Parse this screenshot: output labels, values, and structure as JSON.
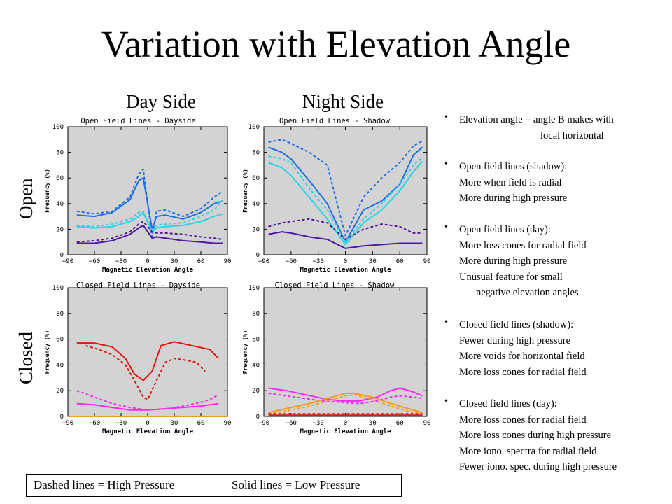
{
  "title": "Variation with Elevation Angle",
  "column_headers": [
    "Day Side",
    "Night Side"
  ],
  "row_headers": [
    "Open",
    "Closed"
  ],
  "bullets": [
    {
      "lines": [
        "Elevation angle = angle B makes with",
        "local horizontal"
      ]
    },
    {
      "lines": [
        "Open field lines (shadow):",
        "More when field is radial",
        "More during high pressure"
      ]
    },
    {
      "lines": [
        "Open field lines (day):",
        "More loss cones for radial field",
        "More during high pressure",
        "Unusual feature for small",
        "negative elevation angles"
      ]
    },
    {
      "lines": [
        "Closed field lines (shadow):",
        "Fewer during high pressure",
        "More voids for horizontal field",
        "More loss cones for radial field"
      ]
    },
    {
      "lines": [
        "Closed field lines (day):",
        "More loss cones for radial field",
        "More loss cones during high pressure",
        "More iono. spectra for radial field",
        "Fewer iono. spec. during high pressure"
      ]
    }
  ],
  "legend": {
    "dashed": "Dashed lines = High Pressure",
    "solid": "Solid lines = Low Pressure"
  },
  "colors": {
    "background": "#d3d3d3",
    "blue": "#1f6fe8",
    "cyan": "#2ad2e8",
    "purple": "#4b1aa0",
    "red": "#e0180e",
    "magenta": "#f22cf0",
    "orange": "#f39a22"
  },
  "chart_data": [
    {
      "type": "line",
      "title": "Open Field Lines  -  Dayside",
      "xlabel": "Magnetic Elevation Angle",
      "ylabel": "Frequency (%)",
      "xlim": [
        -90,
        90
      ],
      "ylim": [
        0,
        100
      ],
      "xticks": [
        -90,
        -60,
        -30,
        0,
        30,
        60,
        90
      ],
      "yticks": [
        0,
        20,
        40,
        60,
        80,
        100
      ],
      "series": [
        {
          "color": "blue",
          "dash": true,
          "x": [
            -80,
            -60,
            -40,
            -20,
            -10,
            -5,
            5,
            10,
            20,
            40,
            60,
            75,
            85
          ],
          "y": [
            34,
            32,
            34,
            45,
            63,
            67,
            14,
            34,
            35,
            30,
            36,
            45,
            50
          ]
        },
        {
          "color": "blue",
          "dash": false,
          "x": [
            -80,
            -60,
            -40,
            -20,
            -10,
            -5,
            5,
            10,
            20,
            40,
            60,
            75,
            85
          ],
          "y": [
            31,
            30,
            33,
            43,
            58,
            60,
            20,
            30,
            31,
            28,
            33,
            40,
            42
          ]
        },
        {
          "color": "cyan",
          "dash": true,
          "x": [
            -80,
            -60,
            -40,
            -20,
            -10,
            -5,
            5,
            10,
            20,
            40,
            60,
            75,
            85
          ],
          "y": [
            23,
            22,
            24,
            28,
            33,
            34,
            20,
            23,
            24,
            25,
            30,
            35,
            43
          ]
        },
        {
          "color": "cyan",
          "dash": false,
          "x": [
            -80,
            -60,
            -40,
            -20,
            -10,
            -5,
            5,
            10,
            20,
            40,
            60,
            75,
            85
          ],
          "y": [
            22,
            21,
            22,
            26,
            30,
            33,
            18,
            21,
            22,
            23,
            26,
            30,
            32
          ]
        },
        {
          "color": "purple",
          "dash": true,
          "x": [
            -80,
            -60,
            -40,
            -20,
            -10,
            -5,
            5,
            10,
            20,
            40,
            60,
            75,
            85
          ],
          "y": [
            10,
            11,
            13,
            18,
            24,
            26,
            18,
            17,
            17,
            16,
            14,
            13,
            12
          ]
        },
        {
          "color": "purple",
          "dash": false,
          "x": [
            -80,
            -60,
            -40,
            -20,
            -10,
            -5,
            5,
            10,
            20,
            40,
            60,
            75,
            85
          ],
          "y": [
            9,
            9,
            11,
            16,
            21,
            23,
            13,
            14,
            13,
            11,
            10,
            9,
            9
          ]
        }
      ]
    },
    {
      "type": "line",
      "title": "Open Field Lines  -  Shadow",
      "xlabel": "Magnetic Elevation Angle",
      "ylabel": "Frequency (%)",
      "xlim": [
        -90,
        90
      ],
      "ylim": [
        0,
        100
      ],
      "xticks": [
        -90,
        -60,
        -30,
        0,
        30,
        60,
        90
      ],
      "yticks": [
        0,
        20,
        40,
        60,
        80,
        100
      ],
      "series": [
        {
          "color": "blue",
          "dash": true,
          "x": [
            -85,
            -70,
            -60,
            -40,
            -20,
            0,
            20,
            40,
            60,
            75,
            85
          ],
          "y": [
            88,
            90,
            87,
            80,
            70,
            15,
            45,
            60,
            72,
            85,
            89
          ]
        },
        {
          "color": "blue",
          "dash": false,
          "x": [
            -85,
            -70,
            -60,
            -40,
            -20,
            0,
            20,
            40,
            60,
            75,
            85
          ],
          "y": [
            84,
            80,
            75,
            58,
            40,
            10,
            35,
            42,
            55,
            78,
            84
          ]
        },
        {
          "color": "cyan",
          "dash": true,
          "x": [
            -85,
            -70,
            -60,
            -40,
            -20,
            0,
            20,
            40,
            60,
            75,
            85
          ],
          "y": [
            77,
            75,
            72,
            52,
            35,
            10,
            28,
            40,
            55,
            70,
            76
          ]
        },
        {
          "color": "cyan",
          "dash": false,
          "x": [
            -85,
            -70,
            -60,
            -40,
            -20,
            0,
            20,
            40,
            60,
            75,
            85
          ],
          "y": [
            72,
            68,
            62,
            45,
            28,
            8,
            25,
            35,
            50,
            65,
            73
          ]
        },
        {
          "color": "purple",
          "dash": true,
          "x": [
            -85,
            -70,
            -60,
            -40,
            -20,
            0,
            20,
            40,
            60,
            75,
            85
          ],
          "y": [
            22,
            25,
            26,
            28,
            25,
            12,
            20,
            24,
            22,
            17,
            17
          ]
        },
        {
          "color": "purple",
          "dash": false,
          "x": [
            -85,
            -70,
            -60,
            -40,
            -20,
            0,
            20,
            40,
            60,
            75,
            85
          ],
          "y": [
            16,
            18,
            17,
            14,
            12,
            5,
            7,
            8,
            9,
            9,
            9
          ]
        }
      ]
    },
    {
      "type": "line",
      "title": "Closed Field Lines  -  Dayside",
      "xlabel": "Magnetic Elevation Angle",
      "ylabel": "Frequency (%)",
      "xlim": [
        -90,
        90
      ],
      "ylim": [
        0,
        100
      ],
      "xticks": [
        -90,
        -60,
        -30,
        0,
        30,
        60,
        90
      ],
      "yticks": [
        0,
        20,
        40,
        60,
        80,
        100
      ],
      "series": [
        {
          "color": "red",
          "dash": false,
          "x": [
            -80,
            -60,
            -40,
            -25,
            -15,
            -5,
            5,
            15,
            30,
            50,
            70,
            80
          ],
          "y": [
            57,
            57,
            54,
            45,
            33,
            28,
            35,
            55,
            58,
            55,
            52,
            45
          ]
        },
        {
          "color": "red",
          "dash": true,
          "x": [
            -70,
            -55,
            -40,
            -25,
            -15,
            -5,
            0,
            10,
            20,
            30,
            40,
            55,
            65
          ],
          "y": [
            55,
            52,
            48,
            40,
            28,
            15,
            13,
            28,
            42,
            45,
            44,
            42,
            35
          ]
        },
        {
          "color": "magenta",
          "dash": true,
          "x": [
            -80,
            -60,
            -40,
            -20,
            0,
            20,
            40,
            60,
            70,
            80
          ],
          "y": [
            20,
            15,
            10,
            7,
            5,
            6,
            8,
            11,
            13,
            17
          ]
        },
        {
          "color": "magenta",
          "dash": false,
          "x": [
            -80,
            -60,
            -40,
            -20,
            0,
            20,
            40,
            60,
            70,
            80
          ],
          "y": [
            10,
            9,
            7,
            5,
            5,
            6,
            7,
            8,
            9,
            10
          ]
        },
        {
          "color": "orange",
          "dash": false,
          "x": [
            -90,
            90
          ],
          "y": [
            0,
            0
          ]
        }
      ]
    },
    {
      "type": "line",
      "title": "Closed Field Lines  -  Shadow",
      "xlabel": "Magnetic Elevation Angle",
      "ylabel": "Frequency (%)",
      "xlim": [
        -90,
        90
      ],
      "ylim": [
        0,
        100
      ],
      "xticks": [
        -90,
        -60,
        -30,
        0,
        30,
        60,
        90
      ],
      "yticks": [
        0,
        20,
        40,
        60,
        80,
        100
      ],
      "series": [
        {
          "color": "magenta",
          "dash": false,
          "x": [
            -85,
            -65,
            -45,
            -25,
            -5,
            15,
            35,
            50,
            60,
            75,
            85
          ],
          "y": [
            22,
            20,
            17,
            14,
            12,
            12,
            15,
            20,
            22,
            19,
            16
          ]
        },
        {
          "color": "magenta",
          "dash": true,
          "x": [
            -85,
            -65,
            -45,
            -25,
            -5,
            15,
            35,
            50,
            60,
            75,
            85
          ],
          "y": [
            18,
            16,
            14,
            12,
            11,
            10,
            12,
            15,
            16,
            15,
            14
          ]
        },
        {
          "color": "orange",
          "dash": false,
          "x": [
            -85,
            -60,
            -40,
            -20,
            0,
            10,
            30,
            50,
            70,
            85
          ],
          "y": [
            3,
            7,
            10,
            14,
            18,
            18,
            15,
            10,
            6,
            3
          ]
        },
        {
          "color": "orange",
          "dash": true,
          "x": [
            -85,
            -60,
            -40,
            -20,
            0,
            10,
            30,
            50,
            70,
            85
          ],
          "y": [
            2,
            5,
            8,
            12,
            16,
            17,
            13,
            8,
            4,
            2
          ]
        },
        {
          "color": "red",
          "dash": false,
          "x": [
            -85,
            -40,
            0,
            40,
            85
          ],
          "y": [
            1,
            1,
            1,
            1,
            1
          ]
        },
        {
          "color": "red",
          "dash": true,
          "x": [
            -85,
            -40,
            0,
            40,
            85
          ],
          "y": [
            2,
            2,
            2,
            2,
            2
          ]
        }
      ]
    }
  ]
}
